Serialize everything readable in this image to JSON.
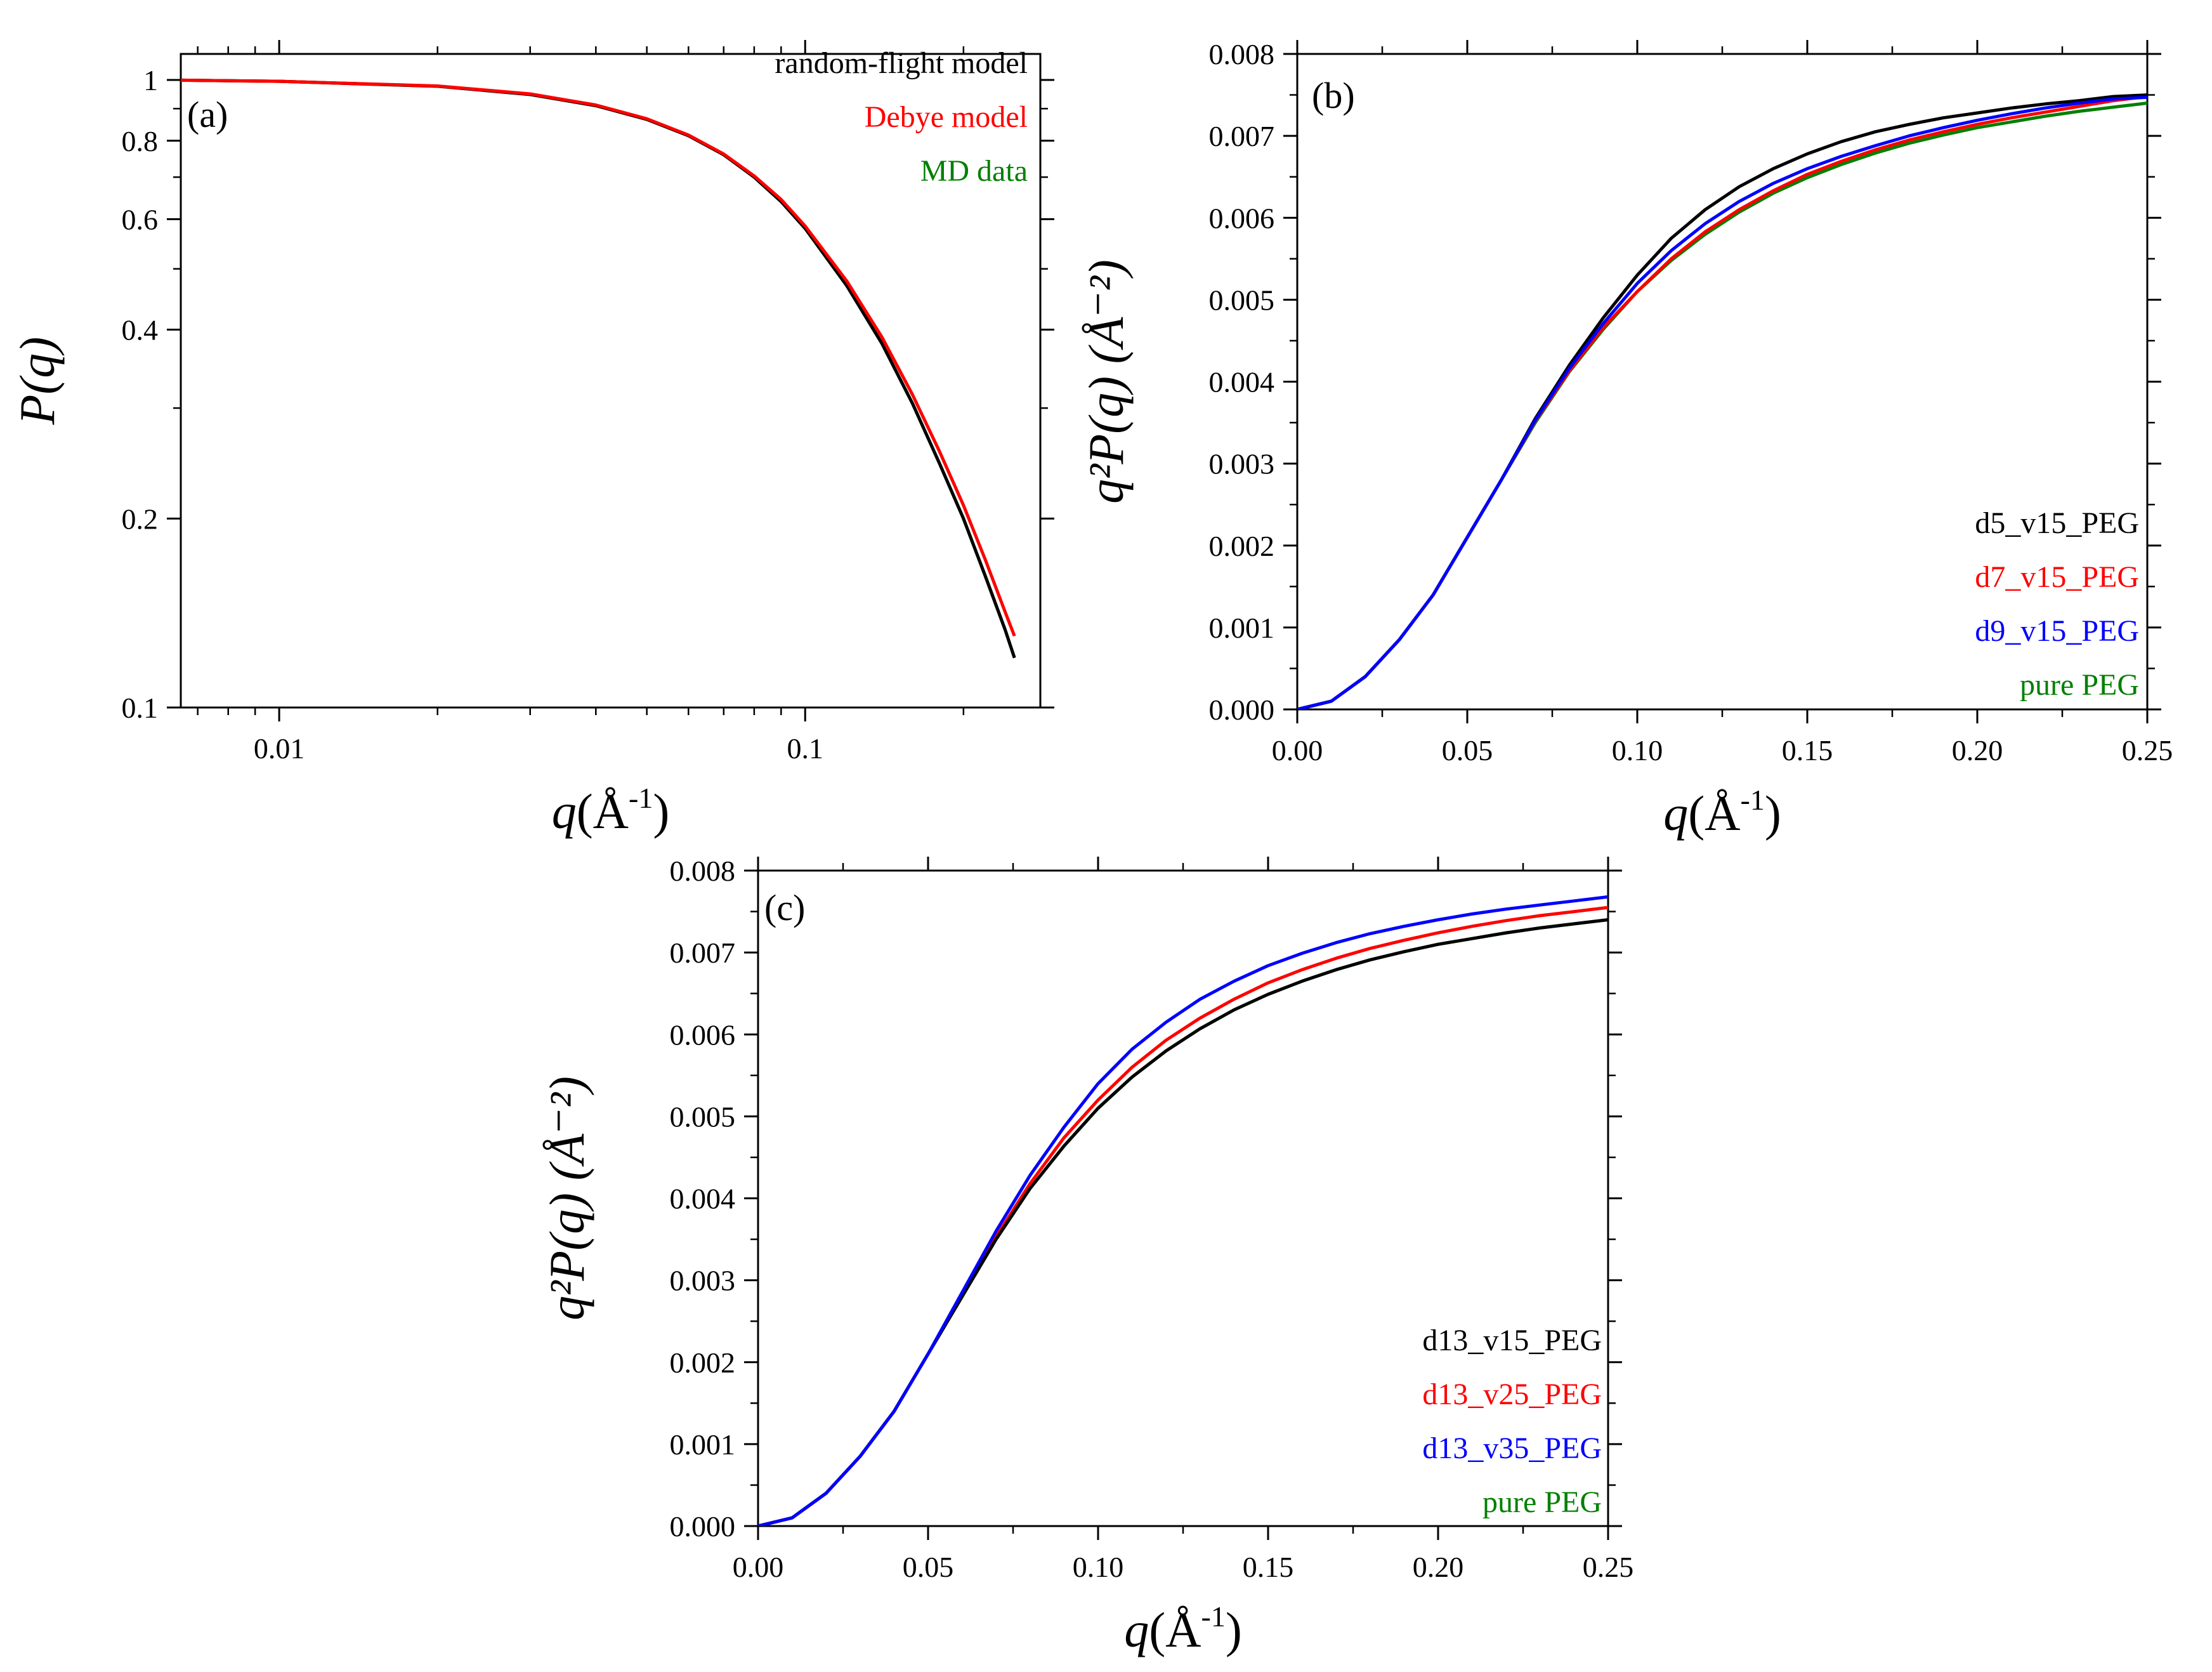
{
  "figure": {
    "panel_count": 3
  },
  "chart_data": [
    {
      "id": "a",
      "type": "line",
      "panel_label": "(a)",
      "x_scale": "log",
      "y_scale": "log",
      "xlim": [
        0.0065,
        0.28
      ],
      "ylim": [
        0.1,
        1.1
      ],
      "xlabel": {
        "italic": "q",
        "unit": "(Å",
        "sup": "-1",
        "close": ")"
      },
      "ylabel": {
        "text": "P(q)"
      },
      "x_ticks": [
        {
          "v": 0.01,
          "label": "0.01"
        },
        {
          "v": 0.1,
          "label": "0.1"
        }
      ],
      "y_ticks": [
        {
          "v": 1,
          "label": "1"
        },
        {
          "v": 0.8,
          "label": "0.8"
        },
        {
          "v": 0.6,
          "label": "0.6"
        },
        {
          "v": 0.4,
          "label": "0.4"
        },
        {
          "v": 0.2,
          "label": "0.2"
        },
        {
          "v": 0.1,
          "label": "0.1"
        }
      ],
      "legend_position": "top-right",
      "series": [
        {
          "name": "random-flight model",
          "color": "#000000",
          "x": [
            0.0065,
            0.01,
            0.02,
            0.03,
            0.04,
            0.05,
            0.06,
            0.07,
            0.08,
            0.09,
            0.1,
            0.12,
            0.14,
            0.16,
            0.18,
            0.2,
            0.22,
            0.24,
            0.25
          ],
          "y": [
            0.999,
            0.995,
            0.977,
            0.948,
            0.91,
            0.865,
            0.815,
            0.76,
            0.7,
            0.64,
            0.58,
            0.47,
            0.38,
            0.305,
            0.245,
            0.2,
            0.162,
            0.133,
            0.12
          ]
        },
        {
          "name": "Debye model",
          "color": "#ff0000",
          "x": [
            0.0065,
            0.01,
            0.02,
            0.03,
            0.04,
            0.05,
            0.06,
            0.07,
            0.08,
            0.09,
            0.1,
            0.12,
            0.14,
            0.16,
            0.18,
            0.2,
            0.22,
            0.24,
            0.25
          ],
          "y": [
            0.999,
            0.995,
            0.978,
            0.95,
            0.912,
            0.867,
            0.817,
            0.762,
            0.703,
            0.645,
            0.585,
            0.478,
            0.389,
            0.315,
            0.256,
            0.21,
            0.172,
            0.142,
            0.13
          ]
        },
        {
          "name": "MD data",
          "color": "#008000",
          "x": [
            0.0065,
            0.01,
            0.02,
            0.03,
            0.04,
            0.05,
            0.06,
            0.07,
            0.08,
            0.09,
            0.1,
            0.12,
            0.14,
            0.16,
            0.18,
            0.2,
            0.22,
            0.24,
            0.25
          ],
          "y": [
            0.999,
            0.995,
            0.977,
            0.948,
            0.91,
            0.865,
            0.815,
            0.76,
            0.7,
            0.64,
            0.58,
            0.47,
            0.38,
            0.305,
            0.245,
            0.2,
            0.162,
            0.133,
            0.12
          ]
        }
      ]
    },
    {
      "id": "b",
      "type": "line",
      "panel_label": "(b)",
      "x_scale": "linear",
      "y_scale": "linear",
      "xlim": [
        0,
        0.25
      ],
      "ylim": [
        0,
        0.008
      ],
      "xlabel": {
        "italic": "q",
        "unit": "(Å",
        "sup": "-1",
        "close": ")"
      },
      "ylabel": {
        "text": "q²P(q) (Å⁻²)"
      },
      "x_ticks": [
        {
          "v": 0,
          "label": "0.00"
        },
        {
          "v": 0.05,
          "label": "0.05"
        },
        {
          "v": 0.1,
          "label": "0.10"
        },
        {
          "v": 0.15,
          "label": "0.15"
        },
        {
          "v": 0.2,
          "label": "0.20"
        },
        {
          "v": 0.25,
          "label": "0.25"
        }
      ],
      "y_ticks": [
        {
          "v": 0,
          "label": "0.000"
        },
        {
          "v": 0.001,
          "label": "0.001"
        },
        {
          "v": 0.002,
          "label": "0.002"
        },
        {
          "v": 0.003,
          "label": "0.003"
        },
        {
          "v": 0.004,
          "label": "0.004"
        },
        {
          "v": 0.005,
          "label": "0.005"
        },
        {
          "v": 0.006,
          "label": "0.006"
        },
        {
          "v": 0.007,
          "label": "0.007"
        },
        {
          "v": 0.008,
          "label": "0.008"
        }
      ],
      "legend_position": "bottom-right",
      "series": [
        {
          "name": "d5_v15_PEG",
          "color": "#000000",
          "x": [
            0,
            0.01,
            0.02,
            0.03,
            0.04,
            0.05,
            0.06,
            0.07,
            0.08,
            0.09,
            0.1,
            0.11,
            0.12,
            0.13,
            0.14,
            0.15,
            0.16,
            0.17,
            0.18,
            0.19,
            0.2,
            0.21,
            0.22,
            0.23,
            0.24,
            0.25
          ],
          "y": [
            0,
            0.0001,
            0.0004,
            0.00085,
            0.0014,
            0.0021,
            0.0028,
            0.00355,
            0.0042,
            0.00478,
            0.0053,
            0.00575,
            0.0061,
            0.00638,
            0.0066,
            0.00678,
            0.00693,
            0.00705,
            0.00714,
            0.00722,
            0.00728,
            0.00734,
            0.00739,
            0.00743,
            0.00748,
            0.0075
          ]
        },
        {
          "name": "d7_v15_PEG",
          "color": "#ff0000",
          "x": [
            0,
            0.01,
            0.02,
            0.03,
            0.04,
            0.05,
            0.06,
            0.07,
            0.08,
            0.09,
            0.1,
            0.11,
            0.12,
            0.13,
            0.14,
            0.15,
            0.16,
            0.17,
            0.18,
            0.19,
            0.2,
            0.21,
            0.22,
            0.23,
            0.24,
            0.25
          ],
          "y": [
            0,
            0.0001,
            0.0004,
            0.00085,
            0.0014,
            0.0021,
            0.0028,
            0.00352,
            0.00413,
            0.00466,
            0.0051,
            0.0055,
            0.00583,
            0.0061,
            0.00633,
            0.00653,
            0.00669,
            0.00683,
            0.00695,
            0.00705,
            0.00714,
            0.00722,
            0.00729,
            0.00736,
            0.00743,
            0.00748
          ]
        },
        {
          "name": "d9_v15_PEG",
          "color": "#0000ff",
          "x": [
            0,
            0.01,
            0.02,
            0.03,
            0.04,
            0.05,
            0.06,
            0.07,
            0.08,
            0.09,
            0.1,
            0.11,
            0.12,
            0.13,
            0.14,
            0.15,
            0.16,
            0.17,
            0.18,
            0.19,
            0.2,
            0.21,
            0.22,
            0.23,
            0.24,
            0.25
          ],
          "y": [
            0,
            0.0001,
            0.0004,
            0.00085,
            0.0014,
            0.0021,
            0.0028,
            0.00353,
            0.00416,
            0.00471,
            0.0052,
            0.0056,
            0.00593,
            0.0062,
            0.00642,
            0.0066,
            0.00675,
            0.00688,
            0.007,
            0.0071,
            0.00719,
            0.00727,
            0.00734,
            0.0074,
            0.00745,
            0.00747
          ]
        },
        {
          "name": "pure PEG",
          "color": "#008000",
          "x": [
            0,
            0.01,
            0.02,
            0.03,
            0.04,
            0.05,
            0.06,
            0.07,
            0.08,
            0.09,
            0.1,
            0.11,
            0.12,
            0.13,
            0.14,
            0.15,
            0.16,
            0.17,
            0.18,
            0.19,
            0.2,
            0.21,
            0.22,
            0.23,
            0.24,
            0.25
          ],
          "y": [
            0,
            0.0001,
            0.0004,
            0.00085,
            0.0014,
            0.0021,
            0.0028,
            0.0035,
            0.00412,
            0.00464,
            0.0051,
            0.00548,
            0.0058,
            0.00607,
            0.0063,
            0.00649,
            0.00665,
            0.00679,
            0.00691,
            0.00701,
            0.0071,
            0.00717,
            0.00724,
            0.0073,
            0.00735,
            0.0074
          ]
        }
      ]
    },
    {
      "id": "c",
      "type": "line",
      "panel_label": "(c)",
      "x_scale": "linear",
      "y_scale": "linear",
      "xlim": [
        0,
        0.25
      ],
      "ylim": [
        0,
        0.008
      ],
      "xlabel": {
        "italic": "q",
        "unit": "(Å",
        "sup": "-1",
        "close": ")"
      },
      "ylabel": {
        "text": "q²P(q) (Å⁻²)"
      },
      "x_ticks": [
        {
          "v": 0,
          "label": "0.00"
        },
        {
          "v": 0.05,
          "label": "0.05"
        },
        {
          "v": 0.1,
          "label": "0.10"
        },
        {
          "v": 0.15,
          "label": "0.15"
        },
        {
          "v": 0.2,
          "label": "0.20"
        },
        {
          "v": 0.25,
          "label": "0.25"
        }
      ],
      "y_ticks": [
        {
          "v": 0,
          "label": "0.000"
        },
        {
          "v": 0.001,
          "label": "0.001"
        },
        {
          "v": 0.002,
          "label": "0.002"
        },
        {
          "v": 0.003,
          "label": "0.003"
        },
        {
          "v": 0.004,
          "label": "0.004"
        },
        {
          "v": 0.005,
          "label": "0.005"
        },
        {
          "v": 0.006,
          "label": "0.006"
        },
        {
          "v": 0.007,
          "label": "0.007"
        },
        {
          "v": 0.008,
          "label": "0.008"
        }
      ],
      "legend_position": "bottom-right",
      "series": [
        {
          "name": "d13_v15_PEG",
          "color": "#000000",
          "x": [
            0,
            0.01,
            0.02,
            0.03,
            0.04,
            0.05,
            0.06,
            0.07,
            0.08,
            0.09,
            0.1,
            0.11,
            0.12,
            0.13,
            0.14,
            0.15,
            0.16,
            0.17,
            0.18,
            0.19,
            0.2,
            0.21,
            0.22,
            0.23,
            0.24,
            0.25
          ],
          "y": [
            0,
            0.0001,
            0.0004,
            0.00085,
            0.0014,
            0.0021,
            0.0028,
            0.0035,
            0.00412,
            0.00464,
            0.0051,
            0.00548,
            0.0058,
            0.00607,
            0.0063,
            0.00649,
            0.00665,
            0.00679,
            0.00691,
            0.00701,
            0.0071,
            0.00717,
            0.00724,
            0.0073,
            0.00735,
            0.0074
          ]
        },
        {
          "name": "d13_v25_PEG",
          "color": "#ff0000",
          "x": [
            0,
            0.01,
            0.02,
            0.03,
            0.04,
            0.05,
            0.06,
            0.07,
            0.08,
            0.09,
            0.1,
            0.11,
            0.12,
            0.13,
            0.14,
            0.15,
            0.16,
            0.17,
            0.18,
            0.19,
            0.2,
            0.21,
            0.22,
            0.23,
            0.24,
            0.25
          ],
          "y": [
            0,
            0.0001,
            0.0004,
            0.00085,
            0.0014,
            0.0021,
            0.0028,
            0.00353,
            0.00418,
            0.00474,
            0.0052,
            0.0056,
            0.00593,
            0.0062,
            0.00643,
            0.00663,
            0.00679,
            0.00693,
            0.00705,
            0.00715,
            0.00724,
            0.00732,
            0.00739,
            0.00745,
            0.0075,
            0.00755
          ]
        },
        {
          "name": "d13_v35_PEG",
          "color": "#0000ff",
          "x": [
            0,
            0.01,
            0.02,
            0.03,
            0.04,
            0.05,
            0.06,
            0.07,
            0.08,
            0.09,
            0.1,
            0.11,
            0.12,
            0.13,
            0.14,
            0.15,
            0.16,
            0.17,
            0.18,
            0.19,
            0.2,
            0.21,
            0.22,
            0.23,
            0.24,
            0.25
          ],
          "y": [
            0,
            0.0001,
            0.0004,
            0.00085,
            0.0014,
            0.0021,
            0.00285,
            0.0036,
            0.00428,
            0.00487,
            0.0054,
            0.00582,
            0.00615,
            0.00643,
            0.00665,
            0.00684,
            0.00699,
            0.00712,
            0.00723,
            0.00732,
            0.0074,
            0.00747,
            0.00753,
            0.00758,
            0.00763,
            0.00768
          ]
        },
        {
          "name": "pure PEG",
          "color": "#008000",
          "x": [
            0,
            0.01,
            0.02,
            0.03,
            0.04,
            0.05,
            0.06,
            0.07,
            0.08,
            0.09,
            0.1,
            0.11,
            0.12,
            0.13,
            0.14,
            0.15,
            0.16,
            0.17,
            0.18,
            0.19,
            0.2,
            0.21,
            0.22,
            0.23,
            0.24,
            0.25
          ],
          "y": [
            0,
            0.0001,
            0.0004,
            0.00085,
            0.0014,
            0.0021,
            0.0028,
            0.0035,
            0.00412,
            0.00464,
            0.0051,
            0.00548,
            0.0058,
            0.00607,
            0.0063,
            0.00649,
            0.00665,
            0.00679,
            0.00691,
            0.00701,
            0.0071,
            0.00717,
            0.00724,
            0.0073,
            0.00735,
            0.0074
          ]
        }
      ]
    }
  ]
}
